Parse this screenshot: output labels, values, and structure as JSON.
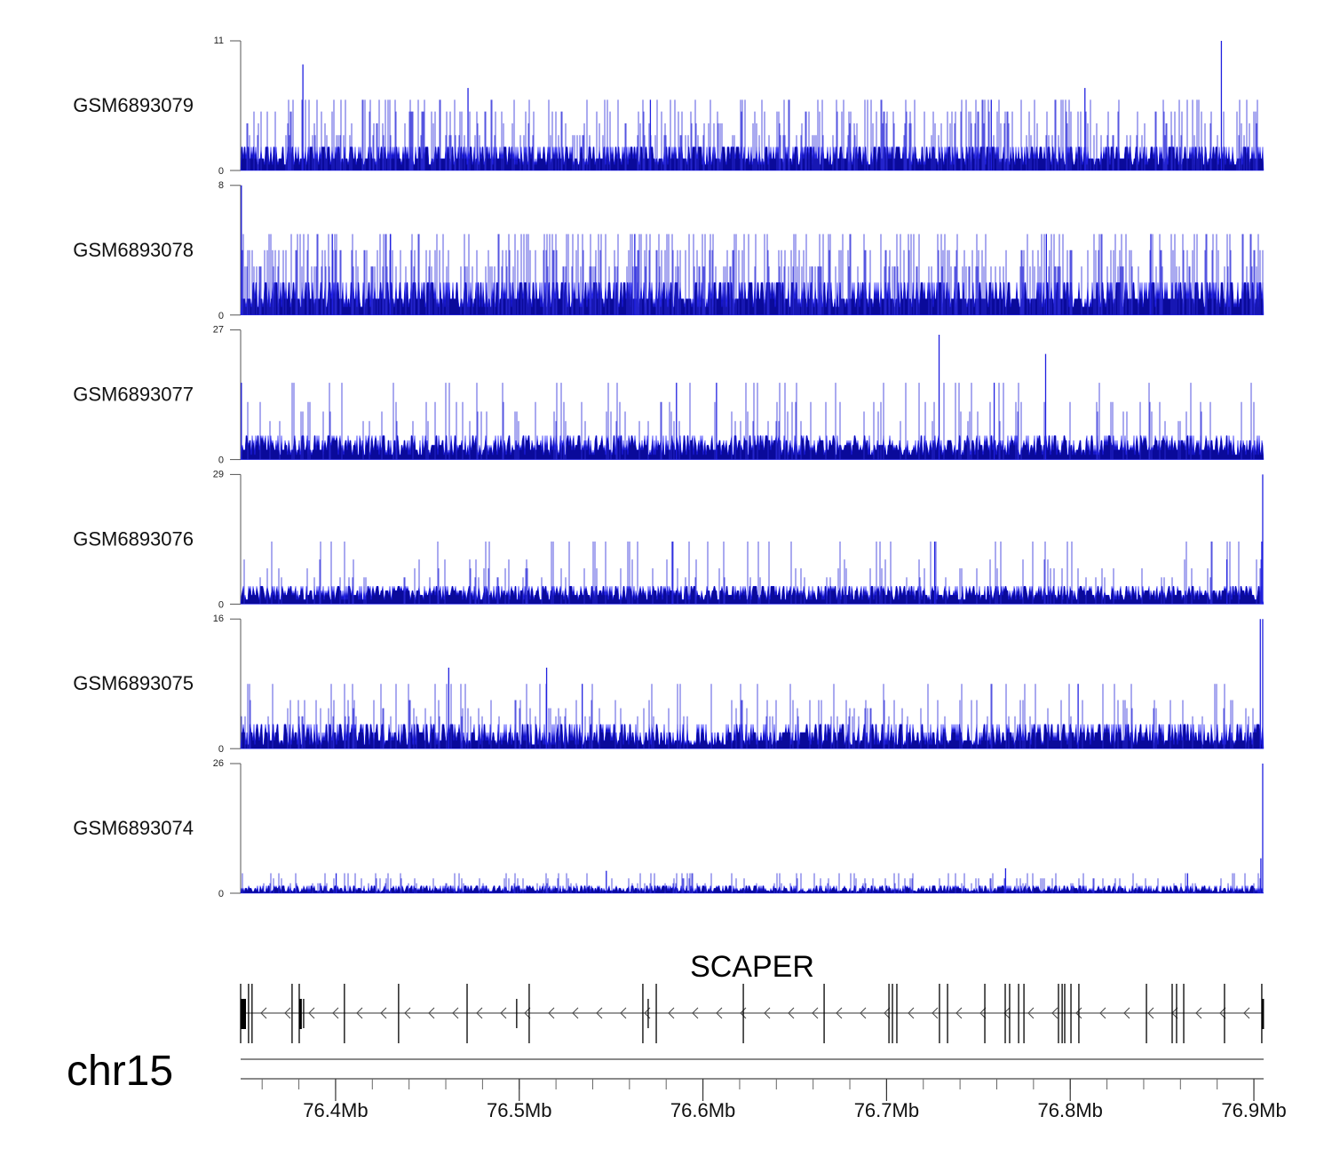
{
  "chart_data": {
    "type": "area",
    "chromosome": "chr15",
    "xlim_mb": [
      76.3483,
      76.9053
    ],
    "x_ticks": [
      "76.4Mb",
      "76.5Mb",
      "76.6Mb",
      "76.7Mb",
      "76.8Mb",
      "76.9Mb"
    ],
    "x_tick_values_mb": [
      76.4,
      76.5,
      76.6,
      76.7,
      76.8,
      76.9
    ],
    "minor_tick_step_mb": 0.02,
    "colors": {
      "fill": "#0a0a9a",
      "stroke": "#1c1cff",
      "gene": "#000000",
      "axis": "#444444"
    },
    "tracks": [
      {
        "name": "GSM6893079",
        "ylim": [
          0,
          11
        ],
        "ymin_label": "0",
        "ymax_label": "11",
        "base_levels": [
          1,
          2
        ],
        "spike_levels": [
          3,
          4,
          5,
          6
        ],
        "spike_rate": 0.3,
        "peaks": [
          [
            76.3822,
            9
          ],
          [
            76.5714,
            6
          ],
          [
            76.4721,
            7
          ],
          [
            76.8823,
            11
          ],
          [
            76.757,
            6
          ],
          [
            76.808,
            7
          ]
        ]
      },
      {
        "name": "GSM6893078",
        "ylim": [
          0,
          8
        ],
        "ymin_label": "0",
        "ymax_label": "8",
        "base_levels": [
          1,
          2
        ],
        "spike_levels": [
          3,
          4,
          5
        ],
        "spike_rate": 0.35,
        "peaks": [
          [
            76.3487,
            8
          ],
          [
            76.3982,
            5
          ],
          [
            76.4298,
            5
          ],
          [
            76.5629,
            5
          ],
          [
            76.787,
            5
          ],
          [
            76.8439,
            5
          ]
        ]
      },
      {
        "name": "GSM6893077",
        "ylim": [
          0,
          27
        ],
        "ymin_label": "0",
        "ymax_label": "27",
        "base_levels": [
          2,
          3,
          4,
          5
        ],
        "spike_levels": [
          8,
          10,
          12,
          16
        ],
        "spike_rate": 0.12,
        "peaks": [
          [
            76.3487,
            16
          ],
          [
            76.5856,
            16
          ],
          [
            76.7286,
            26
          ],
          [
            76.7866,
            22
          ],
          [
            76.7586,
            16
          ],
          [
            76.6074,
            16
          ]
        ]
      },
      {
        "name": "GSM6893076",
        "ylim": [
          0,
          29
        ],
        "ymin_label": "0",
        "ymax_label": "29",
        "base_levels": [
          2,
          3,
          4
        ],
        "spike_levels": [
          6,
          8,
          10,
          14
        ],
        "spike_rate": 0.12,
        "peaks": [
          [
            76.5833,
            14
          ],
          [
            76.9048,
            29
          ],
          [
            76.9043,
            14
          ],
          [
            76.8853,
            10
          ],
          [
            76.7262,
            14
          ]
        ]
      },
      {
        "name": "GSM6893075",
        "ylim": [
          0,
          16
        ],
        "ymin_label": "0",
        "ymax_label": "16",
        "base_levels": [
          1,
          2,
          3
        ],
        "spike_levels": [
          4,
          5,
          6,
          8
        ],
        "spike_rate": 0.15,
        "peaks": [
          [
            76.4616,
            10
          ],
          [
            76.5149,
            10
          ],
          [
            76.5343,
            8
          ],
          [
            76.9035,
            16
          ],
          [
            76.9048,
            16
          ],
          [
            76.8043,
            8
          ]
        ]
      },
      {
        "name": "GSM6893074",
        "ylim": [
          0,
          26
        ],
        "ymin_label": "0",
        "ymax_label": "26",
        "base_levels": [
          0.5,
          1,
          1.5
        ],
        "spike_levels": [
          2,
          3,
          4
        ],
        "spike_rate": 0.15,
        "peaks": [
          [
            76.4003,
            4
          ],
          [
            76.5474,
            4.5
          ],
          [
            76.7648,
            5
          ],
          [
            76.8639,
            4
          ],
          [
            76.9048,
            26
          ],
          [
            76.9038,
            7
          ]
        ]
      }
    ],
    "gene": {
      "symbol": "SCAPER",
      "strand": "-",
      "start_mb": 76.3483,
      "end_mb": 76.9053,
      "thick_blocks": [
        [
          76.3483,
          76.3512
        ],
        [
          76.3802,
          76.3816
        ],
        [
          76.9043,
          76.9053
        ]
      ],
      "exons_mb": [
        76.3526,
        76.3545,
        76.3763,
        76.3826,
        76.4048,
        76.4343,
        76.4716,
        76.4986,
        76.5054,
        76.5673,
        76.5702,
        76.5746,
        76.622,
        76.666,
        76.7013,
        76.7032,
        76.7056,
        76.7288,
        76.7332,
        76.7535,
        76.7646,
        76.767,
        76.7719,
        76.7748,
        76.7936,
        76.7956,
        76.797,
        76.8004,
        76.8047,
        76.8415,
        76.8555,
        76.8579,
        76.8618,
        76.884
      ],
      "short_exons_mb": [
        76.3826,
        76.4986,
        76.5702
      ]
    }
  }
}
